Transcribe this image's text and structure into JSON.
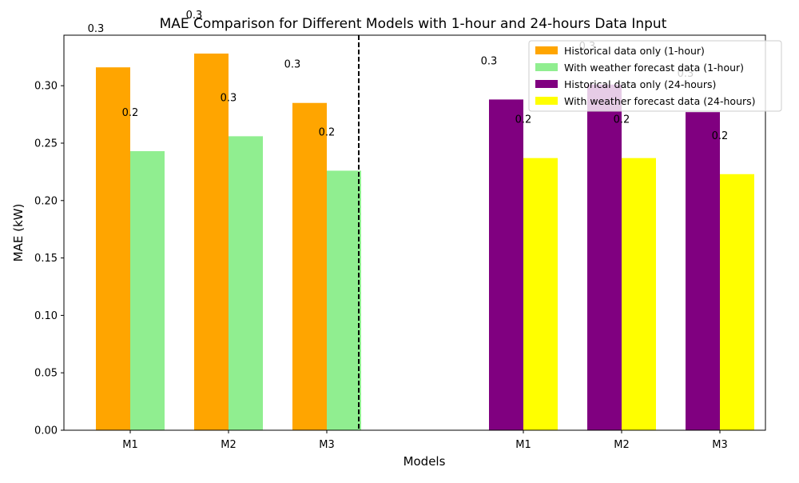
{
  "chart_data": {
    "type": "bar",
    "title": "MAE Comparison for Different Models with 1-hour and 24-hours Data Input",
    "xlabel": "Models",
    "ylabel": "MAE (kW)",
    "ylim": [
      0,
      0.344
    ],
    "yticks": [
      "0.00",
      "0.05",
      "0.10",
      "0.15",
      "0.20",
      "0.25",
      "0.30"
    ],
    "grid": false,
    "legend_position": "top-right",
    "groups": [
      {
        "categories": [
          "M1",
          "M2",
          "M3"
        ],
        "series": [
          {
            "name": "Historical data only (1-hour)",
            "color": "#FFA500",
            "values": [
              0.316,
              0.328,
              0.285
            ],
            "labels": [
              "0.3",
              "0.3",
              "0.3"
            ]
          },
          {
            "name": "With weather forecast data (1-hour)",
            "color": "#90EE90",
            "values": [
              0.243,
              0.256,
              0.226
            ],
            "labels": [
              "0.2",
              "0.3",
              "0.2"
            ]
          }
        ]
      },
      {
        "categories": [
          "M1",
          "M2",
          "M3"
        ],
        "series": [
          {
            "name": "Historical data only (24-hours)",
            "color": "#800080",
            "values": [
              0.288,
              0.301,
              0.277
            ],
            "labels": [
              "0.3",
              "0.3",
              "0.3"
            ]
          },
          {
            "name": "With weather forecast data (24-hours)",
            "color": "#FFFF00",
            "values": [
              0.237,
              0.237,
              0.223
            ],
            "labels": [
              "0.2",
              "0.2",
              "0.2"
            ]
          }
        ]
      }
    ],
    "divider": {
      "style": "dashed",
      "color": "#000000"
    }
  }
}
